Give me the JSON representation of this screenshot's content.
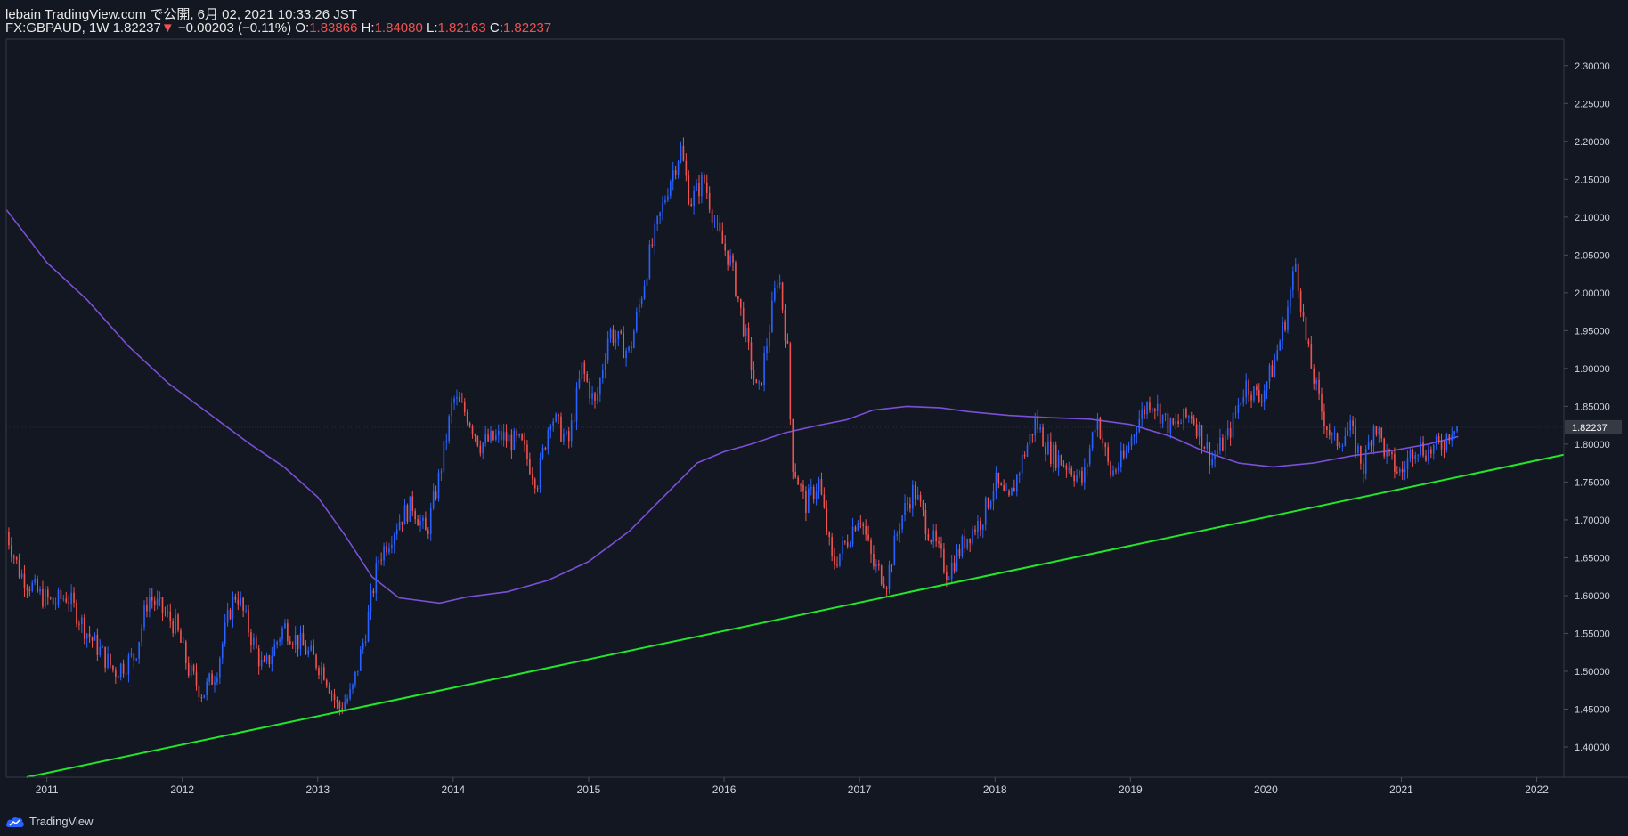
{
  "header": {
    "publish_line": "lebain TradingView.com で公開, 6月 02, 2021 10:33:26 JST",
    "symbol": "FX:GBPAUD, 1W",
    "last": "1.82237",
    "change": "−0.00203 (−0.11%)",
    "o_label": "O:",
    "o_value": "1.83866",
    "h_label": "H:",
    "h_value": "1.84080",
    "l_label": "L:",
    "l_value": "1.82163",
    "c_label": "C:",
    "c_value": "1.82237"
  },
  "footer": {
    "brand": "TradingView",
    "brand_icon": "tradingview-cloud-icon"
  },
  "colors": {
    "background": "#131722",
    "up": "#2962ff",
    "down": "#ef5350",
    "ma": "#7b4fd6",
    "trendline": "#22e62a",
    "axis_text": "#d1d4dc",
    "price_label_bg": "#363a45"
  },
  "chart_data": {
    "type": "candlestick",
    "interval": "1W",
    "symbol": "FX:GBPAUD",
    "x_ticks": [
      "2011",
      "2012",
      "2013",
      "2014",
      "2015",
      "2016",
      "2017",
      "2018",
      "2019",
      "2020",
      "2021",
      "2022"
    ],
    "y_ticks": [
      "1.40000",
      "1.45000",
      "1.50000",
      "1.55000",
      "1.60000",
      "1.65000",
      "1.70000",
      "1.75000",
      "1.80000",
      "1.85000",
      "1.90000",
      "1.95000",
      "2.00000",
      "2.05000",
      "2.10000",
      "2.15000",
      "2.20000",
      "2.25000",
      "2.30000"
    ],
    "xlim": [
      2010.7,
      2022.2
    ],
    "ylim": [
      1.36,
      2.335
    ],
    "current_price_label": "1.82237",
    "current_price": 1.82237,
    "price_path": [
      [
        2010.7,
        1.685
      ],
      [
        2010.8,
        1.63
      ],
      [
        2010.95,
        1.6
      ],
      [
        2011.05,
        1.59
      ],
      [
        2011.15,
        1.6
      ],
      [
        2011.3,
        1.55
      ],
      [
        2011.5,
        1.5
      ],
      [
        2011.65,
        1.52
      ],
      [
        2011.75,
        1.6
      ],
      [
        2011.85,
        1.58
      ],
      [
        2011.95,
        1.56
      ],
      [
        2012.05,
        1.5
      ],
      [
        2012.15,
        1.47
      ],
      [
        2012.25,
        1.5
      ],
      [
        2012.35,
        1.58
      ],
      [
        2012.4,
        1.605
      ],
      [
        2012.5,
        1.55
      ],
      [
        2012.6,
        1.5
      ],
      [
        2012.75,
        1.56
      ],
      [
        2012.85,
        1.54
      ],
      [
        2012.95,
        1.52
      ],
      [
        2013.05,
        1.5
      ],
      [
        2013.15,
        1.45
      ],
      [
        2013.25,
        1.47
      ],
      [
        2013.35,
        1.55
      ],
      [
        2013.45,
        1.65
      ],
      [
        2013.6,
        1.7
      ],
      [
        2013.7,
        1.72
      ],
      [
        2013.8,
        1.68
      ],
      [
        2013.9,
        1.76
      ],
      [
        2014.0,
        1.86
      ],
      [
        2014.1,
        1.84
      ],
      [
        2014.2,
        1.8
      ],
      [
        2014.35,
        1.81
      ],
      [
        2014.5,
        1.8
      ],
      [
        2014.62,
        1.75
      ],
      [
        2014.72,
        1.84
      ],
      [
        2014.85,
        1.8
      ],
      [
        2014.95,
        1.9
      ],
      [
        2015.05,
        1.85
      ],
      [
        2015.15,
        1.95
      ],
      [
        2015.3,
        1.92
      ],
      [
        2015.45,
        2.05
      ],
      [
        2015.6,
        2.15
      ],
      [
        2015.68,
        2.19
      ],
      [
        2015.75,
        2.12
      ],
      [
        2015.85,
        2.15
      ],
      [
        2015.95,
        2.08
      ],
      [
        2016.05,
        2.04
      ],
      [
        2016.15,
        1.95
      ],
      [
        2016.25,
        1.86
      ],
      [
        2016.33,
        1.95
      ],
      [
        2016.4,
        2.03
      ],
      [
        2016.47,
        1.92
      ],
      [
        2016.5,
        1.78
      ],
      [
        2016.6,
        1.72
      ],
      [
        2016.7,
        1.75
      ],
      [
        2016.8,
        1.64
      ],
      [
        2016.9,
        1.67
      ],
      [
        2017.0,
        1.71
      ],
      [
        2017.1,
        1.64
      ],
      [
        2017.2,
        1.62
      ],
      [
        2017.3,
        1.7
      ],
      [
        2017.4,
        1.74
      ],
      [
        2017.5,
        1.69
      ],
      [
        2017.65,
        1.63
      ],
      [
        2017.8,
        1.68
      ],
      [
        2017.9,
        1.7
      ],
      [
        2018.0,
        1.75
      ],
      [
        2018.1,
        1.72
      ],
      [
        2018.2,
        1.78
      ],
      [
        2018.3,
        1.83
      ],
      [
        2018.4,
        1.79
      ],
      [
        2018.55,
        1.77
      ],
      [
        2018.65,
        1.75
      ],
      [
        2018.75,
        1.84
      ],
      [
        2018.85,
        1.76
      ],
      [
        2018.95,
        1.78
      ],
      [
        2019.05,
        1.83
      ],
      [
        2019.15,
        1.86
      ],
      [
        2019.3,
        1.82
      ],
      [
        2019.45,
        1.84
      ],
      [
        2019.6,
        1.78
      ],
      [
        2019.72,
        1.81
      ],
      [
        2019.85,
        1.88
      ],
      [
        2019.95,
        1.86
      ],
      [
        2020.05,
        1.9
      ],
      [
        2020.15,
        1.97
      ],
      [
        2020.22,
        2.04
      ],
      [
        2020.3,
        1.93
      ],
      [
        2020.4,
        1.85
      ],
      [
        2020.5,
        1.8
      ],
      [
        2020.62,
        1.82
      ],
      [
        2020.72,
        1.77
      ],
      [
        2020.8,
        1.83
      ],
      [
        2020.9,
        1.78
      ],
      [
        2021.0,
        1.76
      ],
      [
        2021.1,
        1.8
      ],
      [
        2021.2,
        1.79
      ],
      [
        2021.3,
        1.8
      ],
      [
        2021.4,
        1.83
      ],
      [
        2021.42,
        1.82237
      ]
    ],
    "moving_average": [
      [
        2010.7,
        2.11
      ],
      [
        2011.0,
        2.04
      ],
      [
        2011.3,
        1.99
      ],
      [
        2011.6,
        1.93
      ],
      [
        2011.9,
        1.88
      ],
      [
        2012.2,
        1.84
      ],
      [
        2012.5,
        1.8
      ],
      [
        2012.75,
        1.77
      ],
      [
        2013.0,
        1.73
      ],
      [
        2013.2,
        1.68
      ],
      [
        2013.4,
        1.625
      ],
      [
        2013.6,
        1.597
      ],
      [
        2013.9,
        1.59
      ],
      [
        2014.1,
        1.598
      ],
      [
        2014.4,
        1.605
      ],
      [
        2014.7,
        1.62
      ],
      [
        2015.0,
        1.645
      ],
      [
        2015.3,
        1.685
      ],
      [
        2015.55,
        1.73
      ],
      [
        2015.8,
        1.775
      ],
      [
        2016.0,
        1.79
      ],
      [
        2016.2,
        1.8
      ],
      [
        2016.45,
        1.815
      ],
      [
        2016.7,
        1.825
      ],
      [
        2016.9,
        1.832
      ],
      [
        2017.1,
        1.845
      ],
      [
        2017.35,
        1.85
      ],
      [
        2017.6,
        1.848
      ],
      [
        2017.8,
        1.843
      ],
      [
        2018.1,
        1.838
      ],
      [
        2018.4,
        1.835
      ],
      [
        2018.7,
        1.833
      ],
      [
        2019.0,
        1.826
      ],
      [
        2019.3,
        1.81
      ],
      [
        2019.55,
        1.79
      ],
      [
        2019.8,
        1.775
      ],
      [
        2020.05,
        1.77
      ],
      [
        2020.35,
        1.775
      ],
      [
        2020.65,
        1.785
      ],
      [
        2020.95,
        1.792
      ],
      [
        2021.2,
        1.8
      ],
      [
        2021.42,
        1.81
      ]
    ],
    "trendline": [
      [
        2010.85,
        1.36
      ],
      [
        2022.2,
        1.786
      ]
    ]
  }
}
